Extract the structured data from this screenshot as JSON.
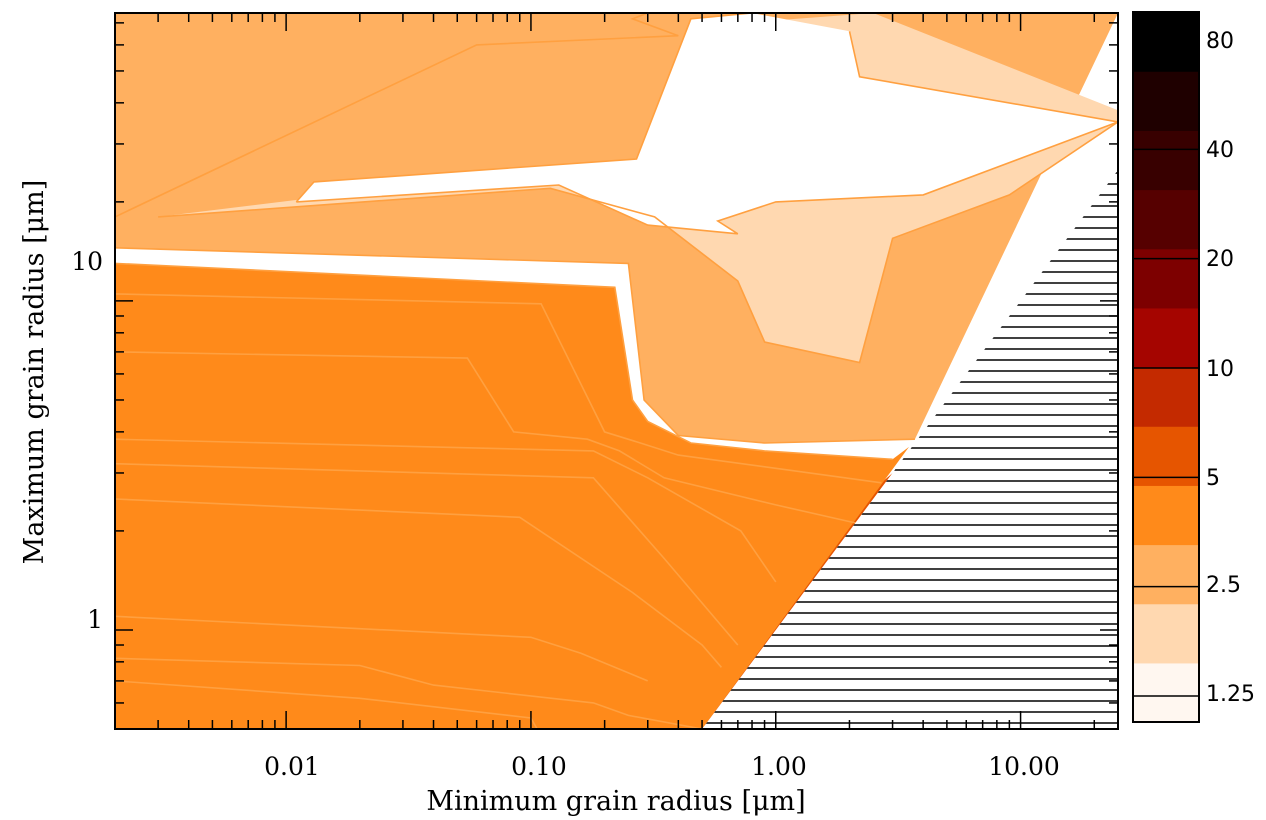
{
  "chart_data": {
    "type": "contour",
    "xlabel": "Minimum grain radius [μm]",
    "ylabel": "Maximum grain radius [μm]",
    "x_scale": "log",
    "y_scale": "log",
    "xlim": [
      0.002,
      25
    ],
    "ylim": [
      0.5,
      75
    ],
    "x_ticks": [
      {
        "value": 0.01,
        "label": "0.01"
      },
      {
        "value": 0.1,
        "label": "0.10"
      },
      {
        "value": 1,
        "label": "1.00"
      },
      {
        "value": 10,
        "label": "10.00"
      }
    ],
    "y_ticks": [
      {
        "value": 1,
        "label": "1"
      },
      {
        "value": 10,
        "label": "10"
      }
    ],
    "invalid_region": "hatched, where minimum grain radius > maximum grain radius",
    "colorbar": {
      "levels": [
        {
          "value": 1.25,
          "label": "1.25"
        },
        {
          "value": 2.5,
          "label": "2.5"
        },
        {
          "value": 5,
          "label": "5"
        },
        {
          "value": 10,
          "label": "10"
        },
        {
          "value": 20,
          "label": "20"
        },
        {
          "value": 40,
          "label": "40"
        },
        {
          "value": 80,
          "label": "80"
        }
      ],
      "colors": [
        "#fff7f0",
        "#ffd8b0",
        "#ffb060",
        "#ff8a1a",
        "#e65500",
        "#c42a00",
        "#a50500",
        "#7d0000",
        "#560000",
        "#380000",
        "#1f0000",
        "#000000"
      ]
    },
    "contour_line_color": "#ffa040",
    "regions": [
      {
        "level": 12,
        "color": "#000000",
        "polygon": [
          [
            0.002,
            0.5
          ],
          [
            0.002,
            0.7
          ],
          [
            0.02,
            0.62
          ],
          [
            0.1,
            0.54
          ],
          [
            0.106,
            0.5
          ]
        ]
      },
      {
        "level": 11,
        "color": "#1f0000",
        "polygon": [
          [
            0.002,
            0.5
          ],
          [
            0.002,
            0.82
          ],
          [
            0.02,
            0.78
          ],
          [
            0.04,
            0.68
          ],
          [
            0.18,
            0.6
          ],
          [
            0.25,
            0.55
          ],
          [
            0.5,
            0.5
          ]
        ]
      },
      {
        "level": 10,
        "color": "#380000",
        "polygon": [
          [
            0.002,
            0.5
          ],
          [
            0.002,
            1.1
          ],
          [
            0.1,
            0.95
          ],
          [
            0.16,
            0.85
          ],
          [
            0.5,
            0.5
          ]
        ]
      },
      {
        "level": 9,
        "color": "#560000",
        "polygon": [
          [
            0.002,
            0.5
          ],
          [
            0.002,
            2.5
          ],
          [
            0.09,
            2.2
          ],
          [
            0.26,
            1.3
          ],
          [
            0.6,
            0.77
          ],
          [
            0.5,
            0.5
          ]
        ]
      },
      {
        "level": 8,
        "color": "#7d0000",
        "polygon": [
          [
            0.002,
            0.5
          ],
          [
            0.002,
            3.2
          ],
          [
            0.18,
            2.9
          ],
          [
            0.35,
            1.65
          ],
          [
            0.7,
            0.9
          ],
          [
            0.5,
            0.5
          ]
        ]
      },
      {
        "level": 7,
        "color": "#a50500",
        "polygon": [
          [
            0.002,
            0.5
          ],
          [
            0.002,
            3.8
          ],
          [
            0.18,
            3.5
          ],
          [
            0.3,
            2.9
          ],
          [
            0.72,
            2.0
          ],
          [
            1.0,
            1.4
          ],
          [
            0.5,
            0.5
          ]
        ]
      },
      {
        "level": 6,
        "color": "#c42a00",
        "polygon": [
          [
            0.002,
            0.5
          ],
          [
            0.002,
            7.0
          ],
          [
            0.055,
            6.7
          ],
          [
            0.085,
            4.0
          ],
          [
            0.17,
            3.8
          ],
          [
            0.23,
            3.5
          ],
          [
            0.35,
            2.9
          ],
          [
            1.0,
            2.4
          ],
          [
            2.2,
            2.1
          ],
          [
            0.5,
            0.5
          ]
        ]
      },
      {
        "level": 5,
        "color": "#e65500",
        "polygon": [
          [
            0.002,
            0.5
          ],
          [
            0.002,
            10.5
          ],
          [
            0.11,
            9.8
          ],
          [
            0.2,
            4.0
          ],
          [
            0.28,
            3.7
          ],
          [
            0.4,
            3.4
          ],
          [
            1.0,
            3.1
          ],
          [
            2.7,
            2.8
          ],
          [
            3.0,
            3.0
          ],
          [
            0.5,
            0.5
          ]
        ]
      },
      {
        "level": 4,
        "color": "#ff8a1a",
        "polygon": [
          [
            0.002,
            0.5
          ],
          [
            0.002,
            13.0
          ],
          [
            0.22,
            11.0
          ],
          [
            0.26,
            5.0
          ],
          [
            0.3,
            4.3
          ],
          [
            0.45,
            3.7
          ],
          [
            0.9,
            3.5
          ],
          [
            3.0,
            3.3
          ],
          [
            3.5,
            3.6
          ],
          [
            0.5,
            0.5
          ]
        ]
      },
      {
        "level": 3,
        "color": "#ffb060",
        "polygon": [
          [
            0.002,
            14.5
          ],
          [
            0.002,
            75
          ],
          [
            25,
            75
          ],
          [
            25,
            75
          ],
          [
            3.7,
            3.8
          ],
          [
            0.9,
            3.7
          ],
          [
            0.4,
            3.9
          ],
          [
            0.29,
            5.0
          ],
          [
            0.25,
            13.0
          ]
        ]
      },
      {
        "level": 2,
        "color": "#ffd8b0",
        "polygon": [
          [
            0.003,
            18.0
          ],
          [
            0.38,
            28.0
          ],
          [
            0.44,
            68.0
          ],
          [
            2.5,
            75
          ],
          [
            25,
            38
          ],
          [
            25,
            35
          ],
          [
            9.0,
            21.0
          ],
          [
            3.0,
            15.5
          ],
          [
            2.2,
            6.5
          ],
          [
            0.9,
            7.5
          ],
          [
            0.7,
            11.5
          ],
          [
            0.32,
            18.0
          ],
          [
            0.12,
            22.0
          ]
        ]
      },
      {
        "level": 1,
        "color": "#ffffff",
        "polygon": [
          [
            0.011,
            20.0
          ],
          [
            0.13,
            22.5
          ],
          [
            0.3,
            17.0
          ],
          [
            0.7,
            16.0
          ],
          [
            0.58,
            17.5
          ],
          [
            1.0,
            20.0
          ],
          [
            4.0,
            21.0
          ],
          [
            25,
            35
          ],
          [
            2.2,
            48.0
          ],
          [
            2.0,
            66.0
          ],
          [
            0.8,
            75
          ],
          [
            0.45,
            72.0
          ],
          [
            0.27,
            27.0
          ],
          [
            0.013,
            23.0
          ]
        ]
      }
    ],
    "contour_lines": [
      [
        [
          0.002,
          0.7
        ],
        [
          0.02,
          0.62
        ],
        [
          0.1,
          0.54
        ],
        [
          0.106,
          0.5
        ]
      ],
      [
        [
          0.002,
          0.82
        ],
        [
          0.02,
          0.78
        ],
        [
          0.04,
          0.68
        ],
        [
          0.18,
          0.6
        ],
        [
          0.25,
          0.55
        ],
        [
          0.5,
          0.5
        ]
      ],
      [
        [
          0.002,
          1.1
        ],
        [
          0.1,
          0.95
        ],
        [
          0.16,
          0.85
        ],
        [
          0.3,
          0.7
        ]
      ],
      [
        [
          0.002,
          2.5
        ],
        [
          0.09,
          2.2
        ],
        [
          0.26,
          1.3
        ],
        [
          0.5,
          0.9
        ],
        [
          0.6,
          0.77
        ]
      ],
      [
        [
          0.002,
          3.2
        ],
        [
          0.18,
          2.9
        ],
        [
          0.35,
          1.65
        ],
        [
          0.7,
          0.9
        ]
      ],
      [
        [
          0.002,
          3.8
        ],
        [
          0.18,
          3.5
        ],
        [
          0.3,
          2.9
        ],
        [
          0.72,
          2.0
        ],
        [
          1.0,
          1.4
        ]
      ],
      [
        [
          0.002,
          7.0
        ],
        [
          0.055,
          6.7
        ],
        [
          0.085,
          4.0
        ],
        [
          0.17,
          3.8
        ],
        [
          0.23,
          3.5
        ],
        [
          0.35,
          2.9
        ],
        [
          1.0,
          2.4
        ],
        [
          2.2,
          2.1
        ]
      ],
      [
        [
          0.002,
          10.5
        ],
        [
          0.11,
          9.8
        ],
        [
          0.2,
          4.0
        ],
        [
          0.28,
          3.7
        ],
        [
          0.4,
          3.4
        ],
        [
          1.0,
          3.1
        ],
        [
          2.7,
          2.8
        ]
      ],
      [
        [
          0.002,
          13.0
        ],
        [
          0.22,
          11.0
        ],
        [
          0.26,
          5.0
        ],
        [
          0.3,
          4.3
        ],
        [
          0.45,
          3.7
        ],
        [
          0.9,
          3.5
        ],
        [
          3.0,
          3.3
        ]
      ],
      [
        [
          0.002,
          14.5
        ],
        [
          0.25,
          13.0
        ],
        [
          0.29,
          5.0
        ],
        [
          0.4,
          3.9
        ],
        [
          0.9,
          3.7
        ],
        [
          3.7,
          3.8
        ]
      ],
      [
        [
          0.002,
          18.0
        ],
        [
          0.06,
          60.0
        ],
        [
          0.4,
          64.0
        ],
        [
          0.26,
          72.0
        ],
        [
          0.3,
          75
        ]
      ],
      [
        [
          0.003,
          18.0
        ],
        [
          0.12,
          22.0
        ],
        [
          0.32,
          18.0
        ],
        [
          0.7,
          11.5
        ],
        [
          0.9,
          7.5
        ],
        [
          2.2,
          6.5
        ],
        [
          3.0,
          15.5
        ],
        [
          9.0,
          21.0
        ],
        [
          25,
          35
        ]
      ],
      [
        [
          0.011,
          20.0
        ],
        [
          0.013,
          23.0
        ],
        [
          0.27,
          27.0
        ],
        [
          0.45,
          72.0
        ],
        [
          0.8,
          75
        ]
      ],
      [
        [
          0.011,
          20.0
        ],
        [
          0.13,
          22.5
        ],
        [
          0.3,
          17.0
        ],
        [
          0.7,
          16.0
        ],
        [
          0.58,
          17.5
        ],
        [
          1.0,
          20.0
        ],
        [
          4.0,
          21.0
        ],
        [
          25,
          35
        ]
      ],
      [
        [
          2.0,
          66.0
        ],
        [
          2.2,
          48.0
        ],
        [
          25,
          35
        ]
      ]
    ]
  }
}
